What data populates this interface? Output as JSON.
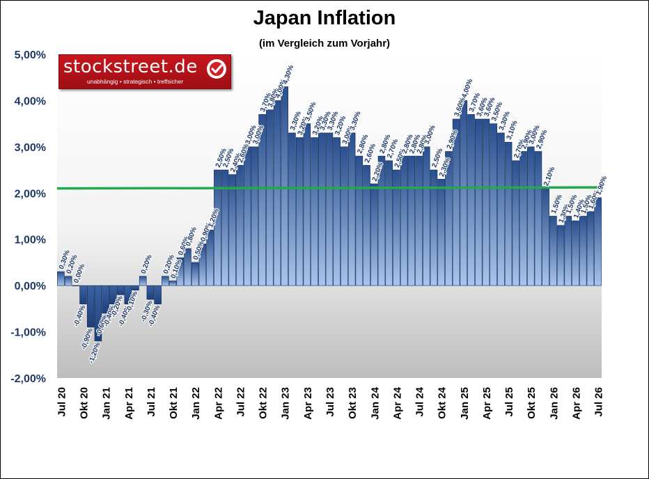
{
  "title": "Japan Inflation",
  "subtitle": "(im Vergleich zum Vorjahr)",
  "logo": {
    "main": "stockstreet.de",
    "sub": "unabhängig • strategisch • treffsicher",
    "icon": "check-icon"
  },
  "colors": {
    "bar": "#2f5597",
    "bar_light": "#8fb0e0",
    "axis_label": "#1f3864",
    "reference_line": "#22a94b"
  },
  "chart_data": {
    "type": "bar",
    "title": "Japan Inflation",
    "subtitle": "(im Vergleich zum Vorjahr)",
    "ylim": [
      -2.0,
      5.0
    ],
    "yticks": [
      5.0,
      4.0,
      3.0,
      2.0,
      1.0,
      0.0,
      -1.0,
      -2.0
    ],
    "ytick_labels": [
      "5,00%",
      "4,00%",
      "3,00%",
      "2,00%",
      "1,00%",
      "0,00%",
      "-1,00%",
      "-2,00%"
    ],
    "xtick_labels": [
      "Jul 20",
      "Okt 20",
      "Jan 21",
      "Apr 21",
      "Jul 21",
      "Okt 21",
      "Jan 22",
      "Apr 22",
      "Jul 22",
      "Okt 22",
      "Jan 23",
      "Apr 23",
      "Jul 23",
      "Okt 23",
      "Jan 24",
      "Apr 24",
      "Jul 24",
      "Okt 24",
      "Jan 25",
      "Apr 25",
      "Jul 25",
      "Okt 25",
      "Jan 26",
      "Apr 26",
      "Jul 26"
    ],
    "values": [
      0.3,
      0.2,
      0.0,
      -0.4,
      -0.9,
      -1.2,
      -0.6,
      -0.4,
      -0.2,
      -0.4,
      -0.1,
      0.2,
      -0.3,
      -0.4,
      0.2,
      0.1,
      0.6,
      0.8,
      0.5,
      0.9,
      1.2,
      2.5,
      2.5,
      2.4,
      2.6,
      3.0,
      3.0,
      3.7,
      3.8,
      4.0,
      4.3,
      3.3,
      3.2,
      3.5,
      3.2,
      3.3,
      3.3,
      3.2,
      3.0,
      3.3,
      2.8,
      2.6,
      2.2,
      2.8,
      2.7,
      2.5,
      2.8,
      2.8,
      2.8,
      3.0,
      2.5,
      2.3,
      2.9,
      3.6,
      4.0,
      3.7,
      3.6,
      3.6,
      3.5,
      3.3,
      3.1,
      2.7,
      2.9,
      3.0,
      2.9,
      2.1,
      1.5,
      1.3,
      1.5,
      1.4,
      1.5,
      1.6,
      1.9
    ],
    "labels": [
      "0,30%",
      "0,20%",
      "0,00%",
      "-0,40%",
      "-0,90%",
      "-1,20%",
      "-0,60%",
      "-0,40%",
      "-0,20%",
      "-0,40%",
      "-0,10%",
      "0,20%",
      "-0,30%",
      "-0,40%",
      "0,20%",
      "0,10%",
      "0,60%",
      "0,80%",
      "0,50%",
      "0,90%",
      "1,20%",
      "2,50%",
      "2,50%",
      "2,40%",
      "2,60%",
      "3,00%",
      "3,00%",
      "3,70%",
      "3,80%",
      "4,00%",
      "4,30%",
      "3,30%",
      "3,20%",
      "3,50%",
      "3,20%",
      "3,30%",
      "3,30%",
      "3,20%",
      "3,00%",
      "3,30%",
      "2,80%",
      "2,60%",
      "2,20%",
      "2,80%",
      "2,70%",
      "2,50%",
      "2,80%",
      "2,80%",
      "2,80%",
      "3,00%",
      "2,50%",
      "2,30%",
      "2,90%",
      "3,60%",
      "4,00%",
      "3,70%",
      "3,60%",
      "3,60%",
      "3,50%",
      "3,30%",
      "3,10%",
      "2,70%",
      "2,90%",
      "3,00%",
      "2,90%",
      "2,10%",
      "1,50%",
      "1,30%",
      "1,50%",
      "1,40%",
      "1,50%",
      "1,60%",
      "1,90%"
    ],
    "reference_line": 2.1,
    "grid": false,
    "legend": "none"
  }
}
